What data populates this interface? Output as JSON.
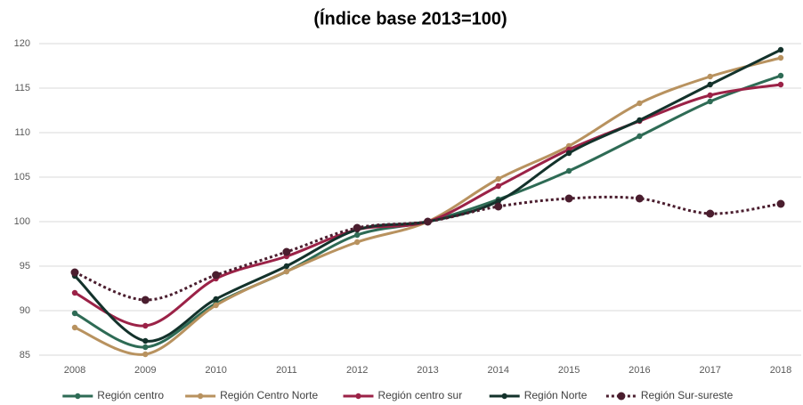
{
  "chart_data": {
    "type": "line",
    "title": "(Índice base 2013=100)",
    "categories": [
      "2008",
      "2009",
      "2010",
      "2011",
      "2012",
      "2013",
      "2014",
      "2015",
      "2016",
      "2017",
      "2018"
    ],
    "series": [
      {
        "name": "Región centro",
        "color": "#2e6b55",
        "values": [
          89.7,
          85.9,
          90.8,
          94.4,
          98.5,
          100,
          102.5,
          105.7,
          109.6,
          113.5,
          116.4
        ]
      },
      {
        "name": "Región Centro Norte",
        "color": "#b8925f",
        "values": [
          88.1,
          85.1,
          90.6,
          94.4,
          97.7,
          100,
          104.8,
          108.5,
          113.3,
          116.3,
          118.4
        ]
      },
      {
        "name": "Región centro sur",
        "color": "#9b2247",
        "values": [
          92.0,
          88.3,
          93.6,
          96.1,
          99.1,
          100,
          104.0,
          108.1,
          111.3,
          114.2,
          115.4
        ]
      },
      {
        "name": "Región Norte",
        "color": "#13322b",
        "values": [
          93.9,
          86.6,
          91.3,
          95.0,
          99.1,
          100,
          102.3,
          107.7,
          111.4,
          115.4,
          119.3
        ]
      },
      {
        "name": "Región Sur-sureste",
        "color": "#4a1d2e",
        "dash": "dotted",
        "values": [
          94.3,
          91.2,
          94.0,
          96.6,
          99.3,
          100,
          101.7,
          102.6,
          102.6,
          100.9,
          102.0
        ]
      }
    ],
    "ylim": [
      85,
      120
    ],
    "yticks": [
      85,
      90,
      95,
      100,
      105,
      110,
      115,
      120
    ],
    "grid": true,
    "smooth": true,
    "legend": "bottom"
  }
}
